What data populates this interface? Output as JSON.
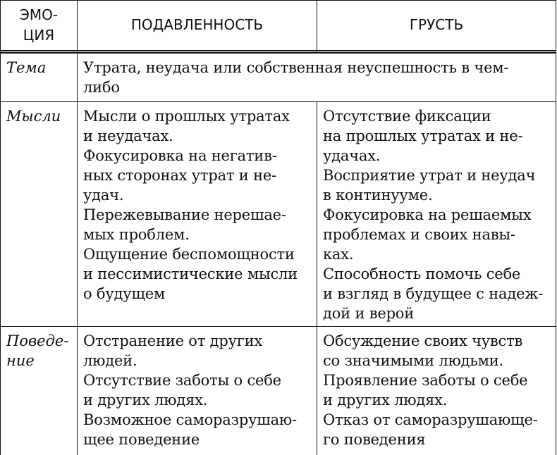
{
  "header": {
    "cells": [
      [
        "ЭМО-",
        "ЦИЯ"
      ],
      [
        "ПОДАВЛЕННОСТЬ"
      ],
      [
        "ГРУСТЬ"
      ]
    ]
  },
  "rows": [
    {
      "label": [
        "Тема"
      ],
      "cells": [
        [
          "Утрата, неудача или собственная неуспешность в чем-",
          "либо"
        ]
      ]
    },
    {
      "label": [
        "Мысли"
      ],
      "cells": [
        [
          "Мысли о прошлых утратах",
          "и неудачах.",
          "Фокусировка на негатив-",
          "ных сторонах утрат и не-",
          "удач.",
          "Пережевывание нерешае-",
          "мых проблем.",
          "Ощущение беспомощности",
          "и пессимистические мысли",
          "о будущем"
        ],
        [
          "Отсутствие фиксации",
          "на прошлых утратах и не-",
          "удачах.",
          "Восприятие утрат и неудач",
          "в континууме.",
          "Фокусировка на решаемых",
          "проблемах и своих навы-",
          "ках.",
          "Способность помочь себе",
          "и взгляд в будущее с надеж-",
          "дой и верой"
        ]
      ]
    },
    {
      "label": [
        "Поведе-",
        "ние"
      ],
      "cells": [
        [
          "Отстранение от других",
          "людей.",
          "Отсутствие заботы о себе",
          "и других людях.",
          "Возможное саморазрушаю-",
          "щее поведение"
        ],
        [
          "Обсуждение своих чувств",
          "со значимыми людьми.",
          "Проявление заботы о себе",
          "и других людях.",
          "Отказ от саморазрушающе-",
          "го поведения"
        ]
      ]
    }
  ]
}
